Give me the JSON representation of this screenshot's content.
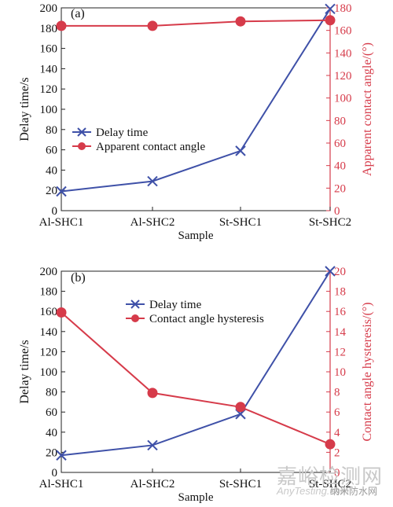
{
  "chart_data": [
    {
      "type": "line",
      "panel_label": "(a)",
      "categories": [
        "Al-SHC1",
        "Al-SHC2",
        "St-SHC1",
        "St-SHC2"
      ],
      "xlabel": "Sample",
      "ylabel": "Delay time/s",
      "ylabel_right": "Apparent contact angle/(°)",
      "ylim": [
        0,
        200
      ],
      "ylim_right": [
        0,
        180
      ],
      "yticks": [
        0,
        20,
        40,
        60,
        80,
        100,
        120,
        140,
        160,
        180,
        200
      ],
      "yticks_right": [
        0,
        20,
        40,
        60,
        80,
        100,
        120,
        140,
        160,
        180
      ],
      "legend_position": "center-left",
      "series": [
        {
          "name": "Delay time",
          "axis": "left",
          "marker": "x",
          "color": "#3f51a8",
          "values": [
            19,
            29,
            59,
            199
          ]
        },
        {
          "name": "Apparent contact angle",
          "axis": "right",
          "marker": "circle",
          "color": "#d63b4a",
          "values": [
            164,
            164,
            168,
            169
          ]
        }
      ]
    },
    {
      "type": "line",
      "panel_label": "(b)",
      "categories": [
        "Al-SHC1",
        "Al-SHC2",
        "St-SHC1",
        "St-SHC2"
      ],
      "xlabel": "Sample",
      "ylabel": "Delay time/s",
      "ylabel_right": "Contact angle hysteresis/(°)",
      "ylim": [
        0,
        200
      ],
      "ylim_right": [
        0,
        20
      ],
      "yticks": [
        0,
        20,
        40,
        60,
        80,
        100,
        120,
        140,
        160,
        180,
        200
      ],
      "yticks_right": [
        0,
        2,
        4,
        6,
        8,
        10,
        12,
        14,
        16,
        18,
        20
      ],
      "legend_position": "top-center",
      "series": [
        {
          "name": "Delay time",
          "axis": "left",
          "marker": "x",
          "color": "#3f51a8",
          "values": [
            17,
            27,
            58,
            200
          ]
        },
        {
          "name": "Contact angle hysteresis",
          "axis": "right",
          "marker": "circle",
          "color": "#d63b4a",
          "values": [
            15.9,
            7.9,
            6.5,
            2.8
          ]
        }
      ]
    }
  ],
  "watermark": {
    "line1": "嘉峪检测网",
    "line2": "AnyTesting.com",
    "line3": "纳米防水网"
  }
}
